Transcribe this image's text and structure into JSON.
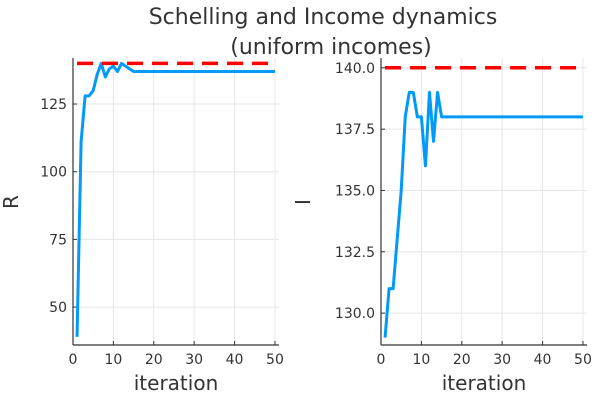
{
  "chart_data": {
    "title_line1": "Schelling and Income dynamics",
    "title_line2": "(uniform incomes)",
    "subplots": [
      {
        "type": "line",
        "xlabel": "iteration",
        "ylabel": "R",
        "xlim": [
          0,
          51
        ],
        "ylim": [
          36,
          142
        ],
        "xticks": [
          0,
          10,
          20,
          30,
          40,
          50
        ],
        "yticks": [
          50,
          75,
          100,
          125
        ],
        "ytick_labels": [
          "50",
          "75",
          "100",
          "125"
        ],
        "grid": true,
        "series": [
          {
            "style": "solid",
            "color": "#009AF9",
            "x": [
              1,
              2,
              3,
              4,
              5,
              6,
              7,
              8,
              9,
              10,
              11,
              12,
              13,
              14,
              15,
              16,
              17,
              18,
              19,
              20,
              21,
              22,
              23,
              24,
              25,
              26,
              27,
              28,
              29,
              30,
              31,
              32,
              33,
              34,
              35,
              36,
              37,
              38,
              39,
              40,
              41,
              42,
              43,
              44,
              45,
              46,
              47,
              48,
              49,
              50
            ],
            "y": [
              39,
              111,
              128,
              128,
              130,
              136,
              140,
              135,
              138,
              139,
              137,
              140,
              139,
              138,
              137,
              137,
              137,
              137,
              137,
              137,
              137,
              137,
              137,
              137,
              137,
              137,
              137,
              137,
              137,
              137,
              137,
              137,
              137,
              137,
              137,
              137,
              137,
              137,
              137,
              137,
              137,
              137,
              137,
              137,
              137,
              137,
              137,
              137,
              137,
              137
            ]
          },
          {
            "style": "dashed",
            "color": "#FF0000",
            "x": [
              1,
              50
            ],
            "y": [
              140,
              140
            ]
          }
        ]
      },
      {
        "type": "line",
        "xlabel": "iteration",
        "ylabel": "I",
        "xlim": [
          0,
          51
        ],
        "ylim": [
          128.7,
          140.4
        ],
        "xticks": [
          0,
          10,
          20,
          30,
          40,
          50
        ],
        "yticks": [
          130,
          132.5,
          135,
          137.5,
          140
        ],
        "ytick_labels": [
          "130.0",
          "132.5",
          "135.0",
          "137.5",
          "140.0"
        ],
        "grid": true,
        "series": [
          {
            "style": "solid",
            "color": "#009AF9",
            "x": [
              1,
              2,
              3,
              4,
              5,
              6,
              7,
              8,
              9,
              10,
              11,
              12,
              13,
              14,
              15,
              16,
              17,
              18,
              19,
              20,
              21,
              22,
              23,
              24,
              25,
              26,
              27,
              28,
              29,
              30,
              31,
              32,
              33,
              34,
              35,
              36,
              37,
              38,
              39,
              40,
              41,
              42,
              43,
              44,
              45,
              46,
              47,
              48,
              49,
              50
            ],
            "y": [
              129,
              131,
              131,
              133,
              135,
              138,
              139,
              139,
              138,
              138,
              136,
              139,
              137,
              139,
              138,
              138,
              138,
              138,
              138,
              138,
              138,
              138,
              138,
              138,
              138,
              138,
              138,
              138,
              138,
              138,
              138,
              138,
              138,
              138,
              138,
              138,
              138,
              138,
              138,
              138,
              138,
              138,
              138,
              138,
              138,
              138,
              138,
              138,
              138,
              138
            ]
          },
          {
            "style": "dashed",
            "color": "#FF0000",
            "x": [
              1,
              50
            ],
            "y": [
              140,
              140
            ]
          }
        ]
      }
    ]
  }
}
